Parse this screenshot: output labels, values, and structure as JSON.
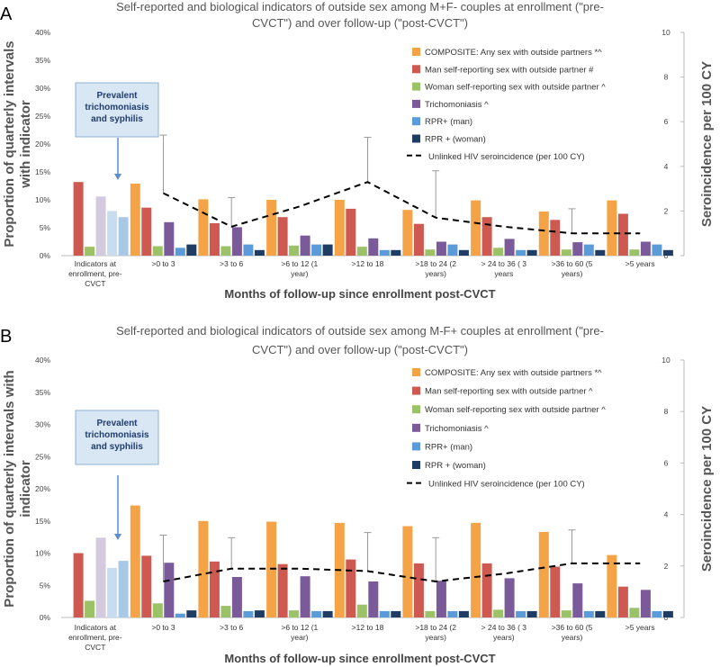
{
  "colors": {
    "composite": "#f5a347",
    "man": "#cd5950",
    "woman": "#9bc266",
    "trich": "#7b5a99",
    "rpr_man": "#5c9bd9",
    "rpr_woman": "#1f3d64",
    "composite_pale": "#f7e3c8",
    "man_pale": "#cd5950",
    "woman_pale": "#9bc266",
    "trich_pale": "#d4cadf",
    "rpr_man_pale": "#c8dcf0",
    "rpr_woman_pale": "#a8c8e8",
    "line": "#000000",
    "callout_fill": "#d9e6f4",
    "callout_stroke": "#8fb1d6",
    "arrow": "#5b8fc7",
    "axis": "#bbbbbb"
  },
  "chart_data": [
    {
      "panel": "A",
      "type": "bar",
      "title": "Self-reported and biological indicators of outside sex among M+F- couples at enrollment (\"pre-CVCT\") and over follow-up (\"post-CVCT\")",
      "title_lines": [
        "Self-reported and biological indicators of outside sex among M+F- couples at enrollment (\"pre-",
        "CVCT\") and over follow-up (\"post-CVCT\")"
      ],
      "ylabel": "Proportion of quarterly intervals with indicator",
      "ylabel_lines": [
        "Proportion of quarterly intervals",
        "with indicator"
      ],
      "y2label": "Seroincidence per 100 CY",
      "xlabel": "Months of follow-up since enrollment post-CVCT",
      "ylim": [
        0,
        40
      ],
      "yticks": [
        "0%",
        "5%",
        "10%",
        "15%",
        "20%",
        "25%",
        "30%",
        "35%",
        "40%"
      ],
      "y2lim": [
        0,
        10
      ],
      "y2ticks": [
        "0",
        "2",
        "4",
        "6",
        "8",
        "10"
      ],
      "categories": [
        [
          "Indicators at",
          "enrollment, pre-",
          "CVCT"
        ],
        [
          ">0 to 3"
        ],
        [
          ">3 to 6"
        ],
        [
          ">6 to 12 (1",
          "year)"
        ],
        [
          ">12 to 18"
        ],
        [
          ">18 to 24 (2",
          "years)"
        ],
        [
          "> 24 to 36 ( 3",
          "years"
        ],
        [
          ">36 to 60 (5",
          "years)"
        ],
        [
          ">5 years"
        ]
      ],
      "series": [
        {
          "name": "COMPOSITE: Any sex with outside partners *^",
          "color_key": "composite",
          "values": [
            null,
            12.9,
            10.1,
            10.0,
            10.0,
            8.2,
            9.9,
            7.9,
            9.9
          ]
        },
        {
          "name": "Man self-reporting sex with outside partner  #",
          "color_key": "man",
          "values": [
            13.2,
            8.6,
            5.8,
            6.9,
            8.4,
            5.7,
            6.9,
            6.4,
            7.5
          ]
        },
        {
          "name": "Woman self-reporting sex with outside partner ^",
          "color_key": "woman",
          "values": [
            1.6,
            1.7,
            1.7,
            1.8,
            1.6,
            1.1,
            1.4,
            1.1,
            1.1
          ]
        },
        {
          "name": "Trichomoniasis ^",
          "color_key": "trich",
          "values": [
            10.6,
            6.0,
            5.1,
            3.6,
            3.1,
            2.5,
            3.0,
            2.4,
            2.5
          ]
        },
        {
          "name": "RPR+ (man)",
          "color_key": "rpr_man",
          "values": [
            8.0,
            1.4,
            2.0,
            2.0,
            1.0,
            2.0,
            1.0,
            2.0,
            2.0
          ]
        },
        {
          "name": "RPR + (woman)",
          "color_key": "rpr_woman",
          "values": [
            6.9,
            2.0,
            1.0,
            2.0,
            1.0,
            1.0,
            1.0,
            1.0,
            1.0
          ]
        }
      ],
      "pale_first_category": [
        "composite",
        "woman",
        "trich",
        "rpr_man",
        "rpr_woman"
      ],
      "line": {
        "name": "Unlinked HIV seroincidence (per 100 CY)",
        "values": [
          null,
          2.8,
          1.3,
          2.2,
          3.3,
          1.7,
          1.3,
          1.0,
          1.0
        ],
        "error_upper": [
          null,
          5.4,
          2.6,
          null,
          5.3,
          3.8,
          null,
          2.1,
          null
        ]
      },
      "callout": [
        "Prevalent",
        "trichomoniasis",
        "and syphilis"
      ]
    },
    {
      "panel": "B",
      "type": "bar",
      "title": "Self-reported and biological indicators of outside sex among M-F+ couples at enrollment (\"pre-CVCT\") and over follow-up (\"post-CVCT\")",
      "title_lines": [
        "Self-reported and biological indicators of outside sex among M-F+ couples at enrollment (\"pre-",
        "CVCT\") and over follow-up (\"post-CVCT\")"
      ],
      "ylabel": "Proportion of quarterly intervals with indicator",
      "ylabel_lines": [
        "Proportion of quarterly intervals with",
        "indicator"
      ],
      "y2label": "Seroincidence per 100 CY",
      "xlabel": "Months of follow-up since enrollment post-CVCT",
      "ylim": [
        0,
        40
      ],
      "yticks": [
        "0%",
        "5%",
        "10%",
        "15%",
        "20%",
        "25%",
        "30%",
        "35%",
        "40%"
      ],
      "y2lim": [
        0,
        10
      ],
      "y2ticks": [
        "0",
        "2",
        "4",
        "6",
        "8",
        "10"
      ],
      "categories": [
        [
          "Indicators at",
          "enrollment, pre-",
          "CVCT"
        ],
        [
          ">0 to 3"
        ],
        [
          ">3 to 6"
        ],
        [
          ">6 to 12 (1",
          "year)"
        ],
        [
          ">12 to 18"
        ],
        [
          ">18 to 24 (2",
          "years)"
        ],
        [
          "> 24 to 36 ( 3",
          "years)"
        ],
        [
          ">36 to 60 (5",
          "years)"
        ],
        [
          ">5 years"
        ]
      ],
      "series": [
        {
          "name": "COMPOSITE: Any sex with outside partners *^",
          "color_key": "composite",
          "values": [
            null,
            17.4,
            15.0,
            14.9,
            14.7,
            14.2,
            14.7,
            13.3,
            9.7
          ]
        },
        {
          "name": "Man self-reporting sex with outside partner ^",
          "color_key": "man",
          "values": [
            10.0,
            9.6,
            8.7,
            8.3,
            9.0,
            8.4,
            8.4,
            7.9,
            4.8
          ]
        },
        {
          "name": "Woman self-reporting sex with outside partner ^",
          "color_key": "woman",
          "values": [
            2.6,
            2.2,
            1.8,
            1.1,
            2.0,
            1.0,
            1.2,
            1.1,
            1.5
          ]
        },
        {
          "name": "Trichomoniasis ^",
          "color_key": "trich",
          "values": [
            12.4,
            8.5,
            6.3,
            6.4,
            5.6,
            5.7,
            6.1,
            5.3,
            4.3
          ]
        },
        {
          "name": "RPR+ (man)",
          "color_key": "rpr_man",
          "values": [
            7.7,
            0.6,
            1.0,
            1.0,
            1.0,
            1.0,
            1.0,
            1.0,
            1.0
          ]
        },
        {
          "name": "RPR + (woman)",
          "color_key": "rpr_woman",
          "values": [
            8.8,
            1.1,
            1.1,
            1.0,
            1.0,
            1.0,
            1.0,
            1.0,
            1.0
          ]
        }
      ],
      "pale_first_category": [
        "trich",
        "rpr_man",
        "rpr_woman"
      ],
      "line": {
        "name": "Unlinked HIV seroincidence (per 100 CY)",
        "values": [
          null,
          1.4,
          1.9,
          1.9,
          1.8,
          1.4,
          1.7,
          2.1,
          2.1
        ],
        "error_upper": [
          null,
          3.2,
          3.1,
          null,
          3.3,
          3.1,
          null,
          3.4,
          null
        ]
      },
      "callout": [
        "Prevalent",
        "trichomoniasis",
        "and syphilis"
      ]
    }
  ]
}
